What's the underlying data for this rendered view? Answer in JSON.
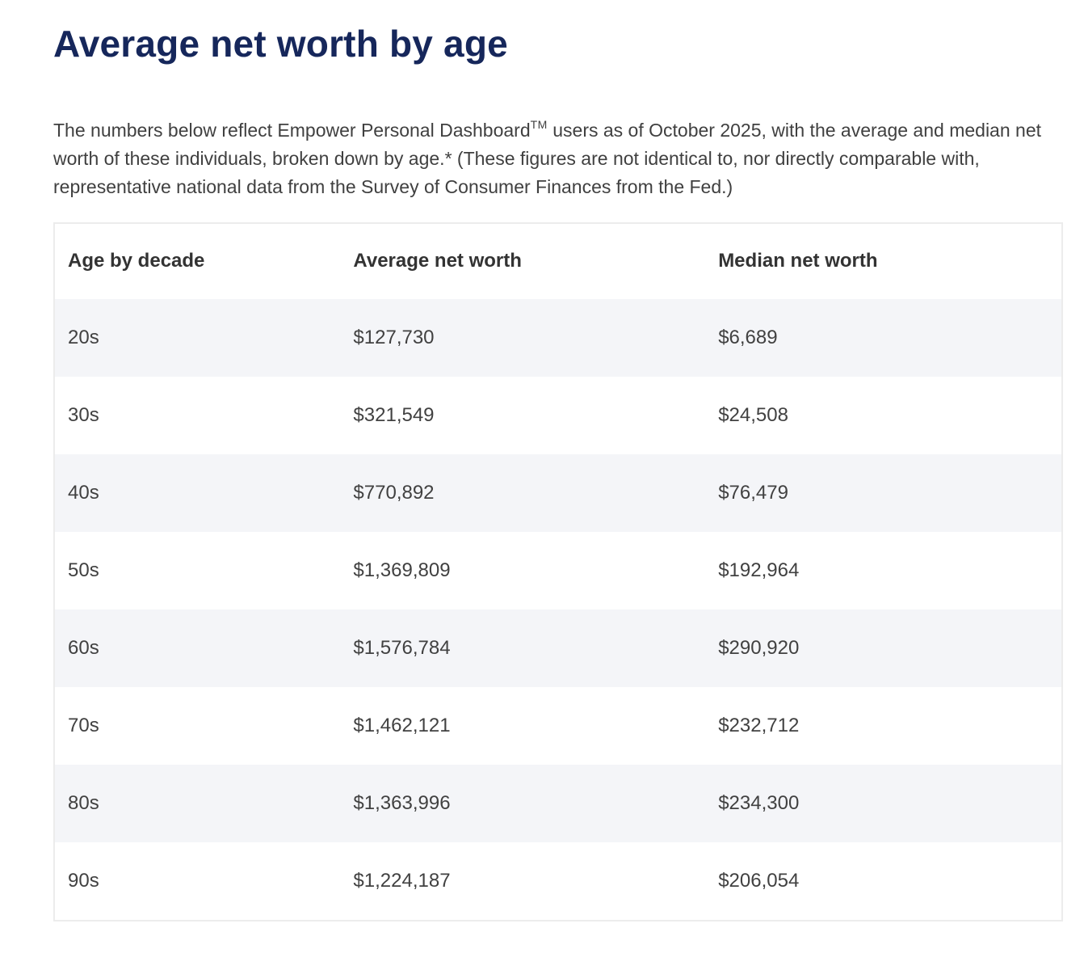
{
  "page": {
    "title": "Average net worth by age",
    "paragraph": {
      "before_tm": "The numbers below reflect Empower Personal Dashboard",
      "tm": "TM",
      "after_tm": " users as of October 2025, with the average and median net worth of these individuals, broken down by age.* (These figures are not identical to, nor directly comparable with, representative national data from the Survey of Consumer Finances from the Fed.)"
    }
  },
  "table": {
    "columns": [
      "Age by decade",
      "Average net worth",
      "Median net worth"
    ],
    "rows": [
      {
        "age": "20s",
        "average": "$127,730",
        "median": "$6,689"
      },
      {
        "age": "30s",
        "average": "$321,549",
        "median": "$24,508"
      },
      {
        "age": "40s",
        "average": "$770,892",
        "median": "$76,479"
      },
      {
        "age": "50s",
        "average": "$1,369,809",
        "median": "$192,964"
      },
      {
        "age": "60s",
        "average": "$1,576,784",
        "median": "$290,920"
      },
      {
        "age": "70s",
        "average": "$1,462,121",
        "median": "$232,712"
      },
      {
        "age": "80s",
        "average": "$1,363,996",
        "median": "$234,300"
      },
      {
        "age": "90s",
        "average": "$1,224,187",
        "median": "$206,054"
      }
    ]
  },
  "colors": {
    "title": "#16275b",
    "body_text": "#404040",
    "header_text": "#333333",
    "cell_text": "#414141",
    "row_stripe": "#f4f5f8",
    "table_border": "#ececec",
    "background": "#ffffff"
  }
}
